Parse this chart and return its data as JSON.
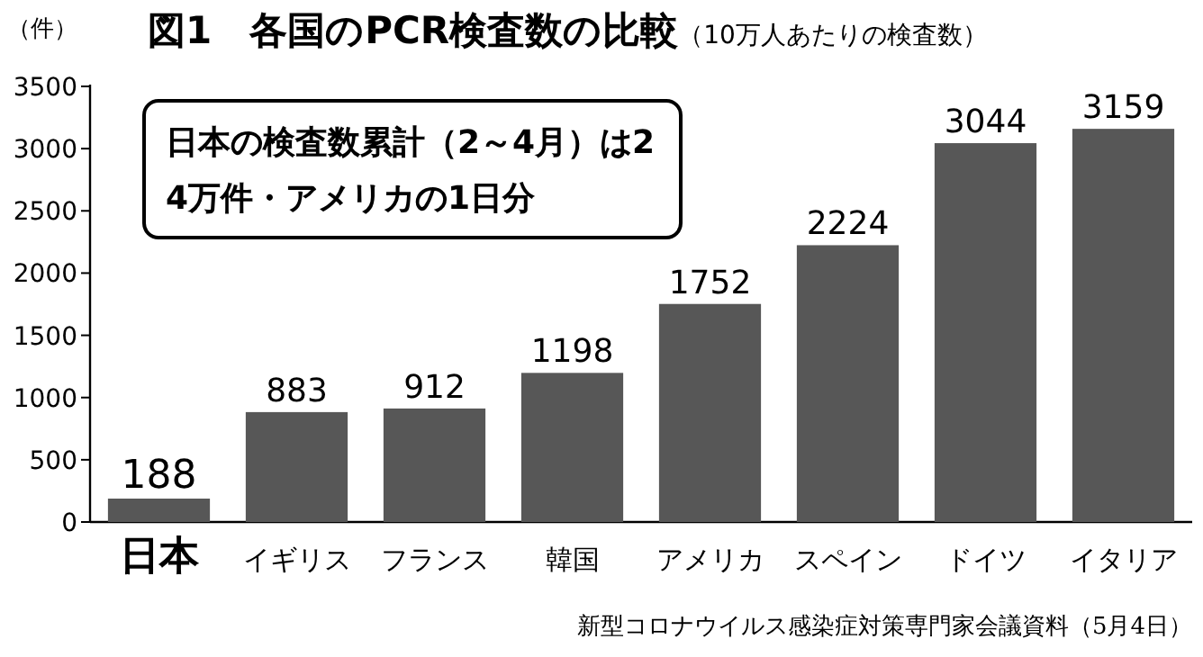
{
  "chart_data": {
    "type": "bar",
    "title": "図1　各国のPCR検査数の比較",
    "subtitle": "（10万人あたりの検査数）",
    "ylabel": "（件）",
    "categories": [
      "日本",
      "イギリス",
      "フランス",
      "韓国",
      "アメリカ",
      "スペイン",
      "ドイツ",
      "イタリア"
    ],
    "values": [
      188,
      883,
      912,
      1198,
      1752,
      2224,
      3044,
      3159
    ],
    "color": "#575757",
    "data_labels": true,
    "ylim": [
      0,
      3500
    ],
    "yticks": [
      0,
      500,
      1000,
      1500,
      2000,
      2500,
      3000,
      3500
    ],
    "annotations": [
      "日本の検査数累計（2～4月）は24万件・アメリカの1日分",
      "新型コロナウイルス感染症対策専門家会議資料（5月4日）"
    ]
  }
}
